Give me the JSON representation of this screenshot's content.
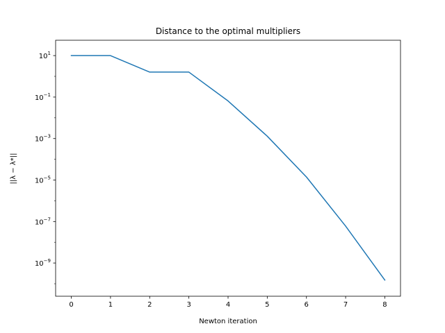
{
  "chart_data": {
    "type": "line",
    "title": "Distance to the optimal multipliers",
    "xlabel": "Newton iteration",
    "ylabel": "||λ − λ*||",
    "yscale": "log",
    "xlim": [
      -0.4,
      8.4
    ],
    "ylim": [
      2.5e-11,
      55
    ],
    "x_ticks": [
      0,
      1,
      2,
      3,
      4,
      5,
      6,
      7,
      8
    ],
    "y_ticks": [
      {
        "base": "10",
        "exp": "1",
        "value": 10
      },
      {
        "base": "10",
        "exp": "−1",
        "value": 0.1
      },
      {
        "base": "10",
        "exp": "−3",
        "value": 0.001
      },
      {
        "base": "10",
        "exp": "−5",
        "value": 1e-05
      },
      {
        "base": "10",
        "exp": "−7",
        "value": 1e-07
      },
      {
        "base": "10",
        "exp": "−9",
        "value": 1e-09
      }
    ],
    "grid": false,
    "legend": "none",
    "series": [
      {
        "color": "#1f77b4",
        "x": [
          0,
          1,
          2,
          3,
          4,
          5,
          6,
          7,
          8
        ],
        "values": [
          10,
          10,
          1.6,
          1.6,
          0.065,
          0.0013,
          1.4e-05,
          6e-08,
          1.5e-10
        ]
      }
    ]
  }
}
